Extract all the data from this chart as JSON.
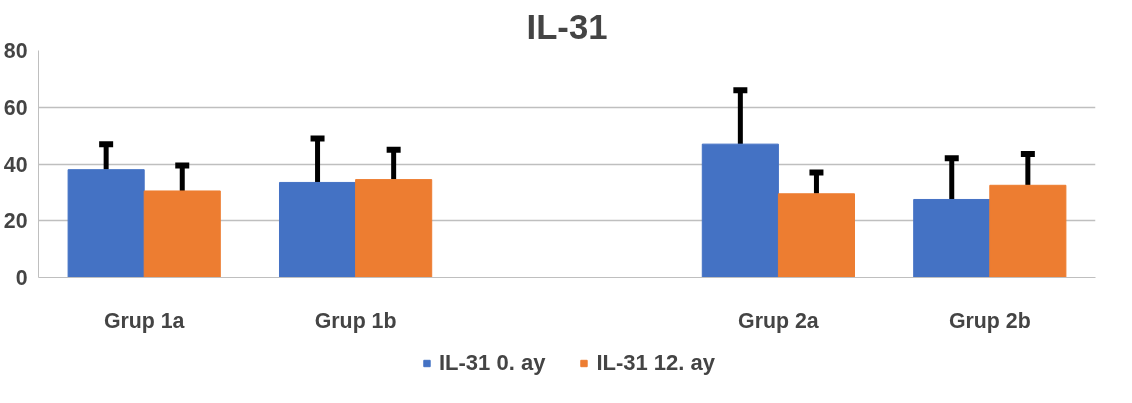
{
  "chart_data": {
    "type": "bar",
    "title": "IL-31",
    "categories": [
      "Grup 1a",
      "Grup 1b",
      null,
      "Grup 2a",
      "Grup 2b"
    ],
    "series": [
      {
        "name": "IL-31 0. ay",
        "color": "#4472c4",
        "values": [
          38,
          33.5,
          null,
          47,
          27.5
        ],
        "errors": [
          [
            38,
            47
          ],
          [
            33.5,
            49
          ],
          null,
          [
            47,
            66
          ],
          [
            27.5,
            42
          ]
        ]
      },
      {
        "name": "IL-31 12. ay",
        "color": "#ed7d31",
        "values": [
          30.5,
          34.5,
          null,
          29.5,
          32.5
        ],
        "errors": [
          [
            30.5,
            39.5
          ],
          [
            34.5,
            45
          ],
          null,
          [
            29.5,
            37
          ],
          [
            32.5,
            43.5
          ]
        ]
      }
    ],
    "ylim": [
      0,
      80
    ],
    "yticks": [
      0,
      20,
      40,
      60,
      80
    ],
    "grid": "y",
    "legend": "bottom"
  }
}
